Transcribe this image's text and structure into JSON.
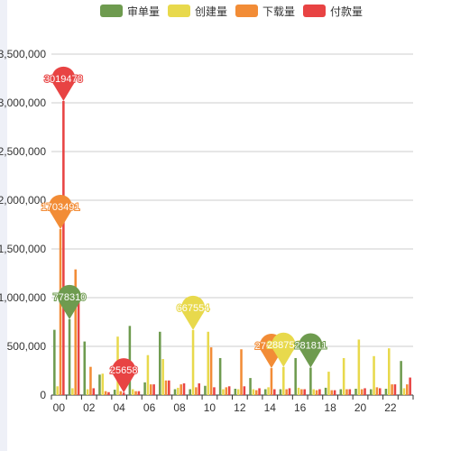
{
  "chart_data": {
    "type": "bar",
    "title": "",
    "xlabel": "",
    "ylabel": "",
    "ylim": [
      0,
      3500000
    ],
    "yticks": [
      "0",
      "500,000",
      "1,000,000",
      "1,500,000",
      "2,000,000",
      "2,500,000",
      "3,000,000",
      "3,500,000"
    ],
    "grid": true,
    "legend_position": "top-center",
    "categories": [
      "00",
      "01",
      "02",
      "03",
      "04",
      "05",
      "06",
      "07",
      "08",
      "09",
      "10",
      "11",
      "12",
      "13",
      "14",
      "15",
      "16",
      "17",
      "18",
      "19",
      "20",
      "21",
      "22",
      "23"
    ],
    "xtick_labels": [
      "00",
      "02",
      "04",
      "06",
      "08",
      "10",
      "12",
      "14",
      "16",
      "18",
      "20",
      "22"
    ],
    "series": [
      {
        "name": "审单量",
        "color": "#6e9b4f",
        "values": [
          670000,
          778310,
          550000,
          210000,
          55000,
          710000,
          130000,
          650000,
          60000,
          60000,
          95000,
          380000,
          65000,
          175000,
          60000,
          60000,
          380000,
          281811,
          75000,
          60000,
          65000,
          60000,
          65000,
          350000
        ]
      },
      {
        "name": "创建量",
        "color": "#e8d94c",
        "values": [
          90000,
          70000,
          60000,
          220000,
          600000,
          60000,
          410000,
          370000,
          75000,
          667554,
          650000,
          60000,
          60000,
          60000,
          80000,
          288754,
          75000,
          60000,
          240000,
          380000,
          570000,
          400000,
          480000,
          70000
        ]
      },
      {
        "name": "下载量",
        "color": "#f28c36",
        "values": [
          1703491,
          1290000,
          290000,
          40000,
          40000,
          40000,
          110000,
          150000,
          110000,
          80000,
          490000,
          80000,
          470000,
          50000,
          276854,
          60000,
          60000,
          50000,
          50000,
          60000,
          60000,
          80000,
          110000,
          110000
        ]
      },
      {
        "name": "付款量",
        "color": "#e84343",
        "values": [
          3019478,
          1000000,
          70000,
          30000,
          25658,
          40000,
          110000,
          150000,
          120000,
          120000,
          80000,
          90000,
          90000,
          70000,
          60000,
          70000,
          60000,
          60000,
          50000,
          60000,
          70000,
          70000,
          110000,
          180000
        ]
      }
    ],
    "markers": [
      {
        "series": 3,
        "index": 0,
        "label": "3019478"
      },
      {
        "series": 2,
        "index": 0,
        "label": "1703491"
      },
      {
        "series": 0,
        "index": 1,
        "label": "778310"
      },
      {
        "series": 1,
        "index": 9,
        "label": "667554"
      },
      {
        "series": 3,
        "index": 4,
        "label": "25658"
      },
      {
        "series": 2,
        "index": 14,
        "label": "276854"
      },
      {
        "series": 1,
        "index": 15,
        "label": "288754"
      },
      {
        "series": 0,
        "index": 17,
        "label": "281811"
      }
    ]
  }
}
